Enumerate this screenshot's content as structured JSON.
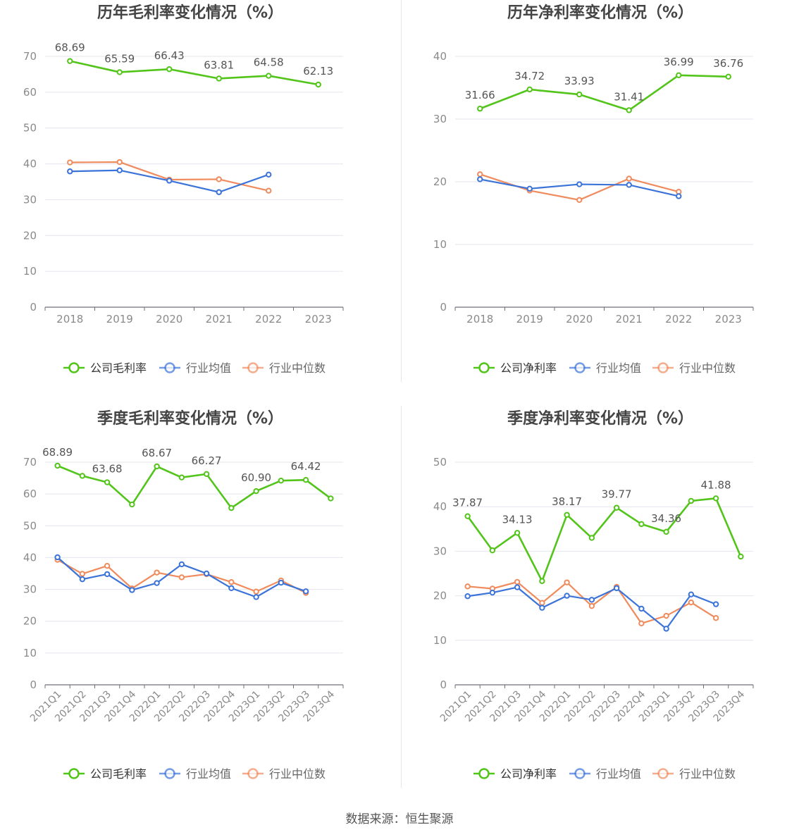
{
  "source": "数据来源：恒生聚源",
  "colors": {
    "company": "#52c41a",
    "avg": "#3b73d9",
    "median": "#f08b5d"
  },
  "chart_data": [
    {
      "id": "annual-gross",
      "type": "line",
      "title": "历年毛利率变化情况（%）",
      "categories": [
        "2018",
        "2019",
        "2020",
        "2021",
        "2022",
        "2023"
      ],
      "ylim": [
        0,
        70
      ],
      "yticks": [
        0,
        10,
        20,
        30,
        40,
        50,
        60,
        70
      ],
      "grid": true,
      "legend_position": "bottom",
      "series": [
        {
          "key": "company",
          "name": "公司毛利率",
          "values": [
            68.69,
            65.59,
            66.43,
            63.81,
            64.58,
            62.13
          ],
          "labels": [
            "68.69",
            "65.59",
            "66.43",
            "63.81",
            "64.58",
            "62.13"
          ]
        },
        {
          "key": "avg",
          "name": "行业均值",
          "values": [
            37.9,
            38.2,
            35.3,
            32.1,
            37.0,
            null
          ]
        },
        {
          "key": "median",
          "name": "行业中位数",
          "values": [
            40.4,
            40.5,
            35.6,
            35.7,
            32.5,
            null
          ]
        }
      ]
    },
    {
      "id": "annual-net",
      "type": "line",
      "title": "历年净利率变化情况（%）",
      "categories": [
        "2018",
        "2019",
        "2020",
        "2021",
        "2022",
        "2023"
      ],
      "ylim": [
        0,
        40
      ],
      "yticks": [
        0,
        10,
        20,
        30,
        40
      ],
      "grid": true,
      "legend_position": "bottom",
      "series": [
        {
          "key": "company",
          "name": "公司净利率",
          "values": [
            31.66,
            34.72,
            33.93,
            31.41,
            36.99,
            36.76
          ],
          "labels": [
            "31.66",
            "34.72",
            "33.93",
            "31.41",
            "36.99",
            "36.76"
          ]
        },
        {
          "key": "avg",
          "name": "行业均值",
          "values": [
            20.4,
            18.9,
            19.6,
            19.5,
            17.7,
            null
          ]
        },
        {
          "key": "median",
          "name": "行业中位数",
          "values": [
            21.2,
            18.6,
            17.1,
            20.5,
            18.4,
            null
          ]
        }
      ]
    },
    {
      "id": "quarterly-gross",
      "type": "line",
      "title": "季度毛利率变化情况（%）",
      "categories": [
        "2021Q1",
        "2021Q2",
        "2021Q3",
        "2021Q4",
        "2022Q1",
        "2022Q2",
        "2022Q3",
        "2022Q4",
        "2023Q1",
        "2023Q2",
        "2023Q3",
        "2023Q4"
      ],
      "ylim": [
        0,
        70
      ],
      "yticks": [
        0,
        10,
        20,
        30,
        40,
        50,
        60,
        70
      ],
      "grid": true,
      "legend_position": "bottom",
      "series": [
        {
          "key": "company",
          "name": "公司毛利率",
          "values": [
            68.89,
            65.7,
            63.68,
            56.7,
            68.67,
            65.2,
            66.27,
            55.6,
            60.9,
            64.2,
            64.42,
            58.6
          ],
          "labels": [
            "68.89",
            "",
            "63.68",
            "",
            "68.67",
            "",
            "66.27",
            "",
            "60.90",
            "",
            "64.42",
            ""
          ]
        },
        {
          "key": "avg",
          "name": "行业均值",
          "values": [
            40.1,
            33.2,
            34.8,
            29.8,
            32.0,
            37.9,
            35.0,
            30.4,
            27.6,
            32.1,
            29.4,
            null
          ]
        },
        {
          "key": "median",
          "name": "行业中位数",
          "values": [
            39.3,
            34.9,
            37.4,
            30.3,
            35.3,
            33.8,
            34.8,
            32.3,
            29.3,
            32.8,
            28.9,
            null
          ]
        }
      ]
    },
    {
      "id": "quarterly-net",
      "type": "line",
      "title": "季度净利率变化情况（%）",
      "categories": [
        "2021Q1",
        "2021Q2",
        "2021Q3",
        "2021Q4",
        "2022Q1",
        "2022Q2",
        "2022Q3",
        "2022Q4",
        "2023Q1",
        "2023Q2",
        "2023Q3",
        "2023Q4"
      ],
      "ylim": [
        0,
        50
      ],
      "yticks": [
        0,
        10,
        20,
        30,
        40,
        50
      ],
      "grid": true,
      "legend_position": "bottom",
      "series": [
        {
          "key": "company",
          "name": "公司净利率",
          "values": [
            37.87,
            30.2,
            34.13,
            23.3,
            38.17,
            33.0,
            39.77,
            36.1,
            34.36,
            41.3,
            41.88,
            28.8
          ],
          "labels": [
            "37.87",
            "",
            "34.13",
            "",
            "38.17",
            "",
            "39.77",
            "",
            "34.36",
            "",
            "41.88",
            ""
          ]
        },
        {
          "key": "avg",
          "name": "行业均值",
          "values": [
            19.9,
            20.7,
            21.9,
            17.3,
            20.0,
            19.1,
            21.7,
            17.1,
            12.6,
            20.3,
            18.1,
            null
          ]
        },
        {
          "key": "median",
          "name": "行业中位数",
          "values": [
            22.1,
            21.6,
            23.1,
            18.4,
            23.0,
            17.7,
            22.0,
            13.8,
            15.5,
            18.5,
            15.0,
            null
          ]
        }
      ]
    }
  ]
}
